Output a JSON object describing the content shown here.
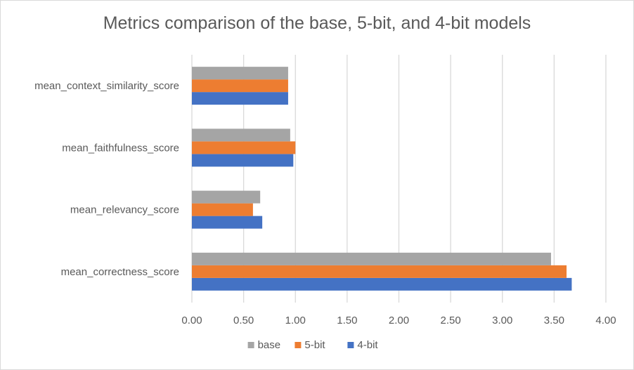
{
  "chart_data": {
    "type": "bar",
    "orientation": "horizontal",
    "title": "Metrics comparison of the base, 5-bit, and 4-bit models",
    "categories": [
      "mean_correctness_score",
      "mean_relevancy_score",
      "mean_faithfulness_score",
      "mean_context_similarity_score"
    ],
    "series": [
      {
        "name": "4-bit",
        "color": "#4472c4",
        "values": [
          3.67,
          0.68,
          0.98,
          0.93
        ]
      },
      {
        "name": "5-bit",
        "color": "#ed7d31",
        "values": [
          3.62,
          0.59,
          1.0,
          0.93
        ]
      },
      {
        "name": "base",
        "color": "#a5a5a5",
        "values": [
          3.47,
          0.66,
          0.95,
          0.93
        ]
      }
    ],
    "xlim": [
      0,
      4
    ],
    "x_ticks": [
      "0.00",
      "0.50",
      "1.00",
      "1.50",
      "2.00",
      "2.50",
      "3.00",
      "3.50",
      "4.00"
    ],
    "x_tick_values": [
      0,
      0.5,
      1,
      1.5,
      2,
      2.5,
      3,
      3.5,
      4
    ],
    "grid": "vertical",
    "legend_position": "bottom",
    "legend_order": [
      "base",
      "5-bit",
      "4-bit"
    ]
  }
}
